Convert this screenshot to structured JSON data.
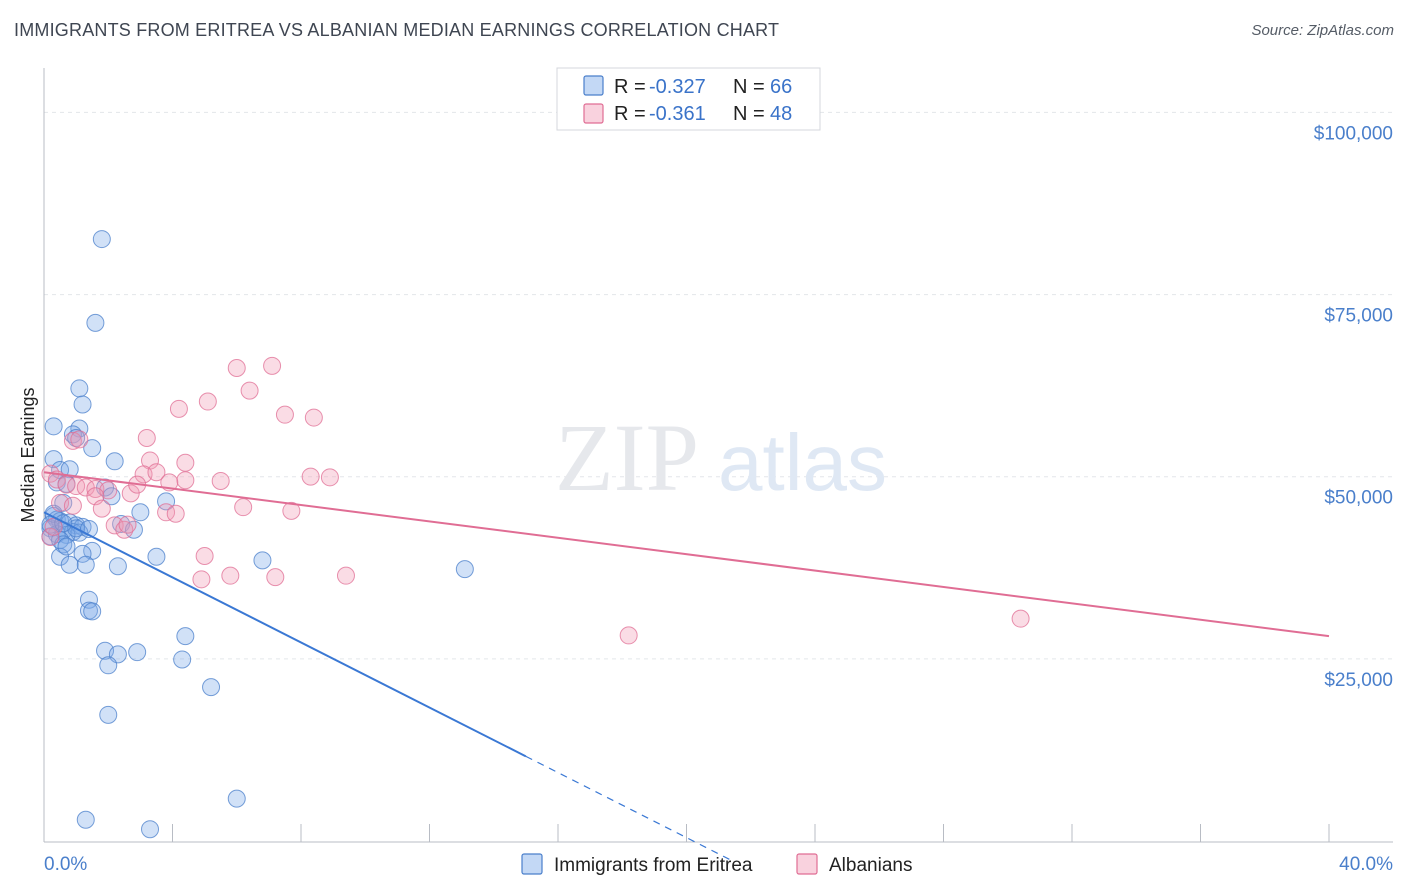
{
  "title": "IMMIGRANTS FROM ERITREA VS ALBANIAN MEDIAN EARNINGS CORRELATION CHART",
  "source": "Source: ZipAtlas.com",
  "watermark": {
    "zip": "ZIP",
    "atlas": "atlas"
  },
  "legend": [
    {
      "r_label": "R =",
      "r_value": "-0.327",
      "n_label": "N =",
      "n_value": "66",
      "color": "#7aa8e8"
    },
    {
      "r_label": "R =",
      "r_value": "-0.361",
      "n_label": "N =",
      "n_value": "48",
      "color": "#f29bb5"
    }
  ],
  "chart_data": {
    "type": "scatter",
    "title": "IMMIGRANTS FROM ERITREA VS ALBANIAN MEDIAN EARNINGS CORRELATION CHART",
    "xlabel": "",
    "ylabel": "Median Earnings",
    "xlim": [
      0,
      40
    ],
    "ylim": [
      0,
      105000
    ],
    "x_tick_labels": [
      {
        "value": 0,
        "label": "0.0%"
      },
      {
        "value": 40,
        "label": "40.0%"
      }
    ],
    "y_ticks": [
      {
        "value": 25000,
        "label": "$25,000"
      },
      {
        "value": 50000,
        "label": "$50,000"
      },
      {
        "value": 75000,
        "label": "$75,000"
      },
      {
        "value": 100000,
        "label": "$100,000"
      }
    ],
    "series": [
      {
        "name": "Immigrants from Eritrea",
        "color": "#7aa8e8",
        "stroke": "#4a7fcb",
        "trend": {
          "x0": 0.0,
          "y0": 48000,
          "x1": 15.0,
          "y1": 14500,
          "dash_to_x": 21.5,
          "dash_to_y": 0
        },
        "points": [
          [
            1.8,
            85500
          ],
          [
            1.6,
            74000
          ],
          [
            1.1,
            65000
          ],
          [
            1.2,
            62800
          ],
          [
            0.3,
            59800
          ],
          [
            1.1,
            59500
          ],
          [
            0.9,
            58700
          ],
          [
            1.0,
            58200
          ],
          [
            1.5,
            56800
          ],
          [
            2.2,
            55000
          ],
          [
            0.3,
            55300
          ],
          [
            0.5,
            53800
          ],
          [
            0.8,
            53900
          ],
          [
            0.4,
            52100
          ],
          [
            0.7,
            51900
          ],
          [
            1.9,
            51400
          ],
          [
            2.1,
            50200
          ],
          [
            3.8,
            49500
          ],
          [
            0.6,
            49300
          ],
          [
            3.0,
            48000
          ],
          [
            0.3,
            47500
          ],
          [
            0.4,
            47000
          ],
          [
            0.5,
            46800
          ],
          [
            0.8,
            46600
          ],
          [
            1.0,
            46200
          ],
          [
            1.2,
            46000
          ],
          [
            0.2,
            45800
          ],
          [
            0.6,
            45500
          ],
          [
            0.9,
            45300
          ],
          [
            1.1,
            45200
          ],
          [
            0.4,
            45000
          ],
          [
            0.7,
            44900
          ],
          [
            0.2,
            44700
          ],
          [
            2.4,
            46400
          ],
          [
            2.8,
            45600
          ],
          [
            0.5,
            44200
          ],
          [
            0.6,
            43600
          ],
          [
            1.5,
            42700
          ],
          [
            1.2,
            42300
          ],
          [
            0.5,
            41900
          ],
          [
            3.5,
            41900
          ],
          [
            6.8,
            41400
          ],
          [
            0.8,
            40800
          ],
          [
            1.3,
            40800
          ],
          [
            2.3,
            40600
          ],
          [
            13.1,
            40200
          ],
          [
            1.4,
            36000
          ],
          [
            1.4,
            34500
          ],
          [
            1.5,
            34400
          ],
          [
            4.4,
            31000
          ],
          [
            1.9,
            29000
          ],
          [
            2.3,
            28500
          ],
          [
            2.9,
            28800
          ],
          [
            4.3,
            27800
          ],
          [
            2.0,
            27000
          ],
          [
            5.2,
            24000
          ],
          [
            2.0,
            20200
          ],
          [
            6.0,
            8700
          ],
          [
            1.3,
            5800
          ],
          [
            3.3,
            4500
          ],
          [
            0.3,
            47800
          ],
          [
            0.7,
            43300
          ],
          [
            1.0,
            45800
          ],
          [
            0.2,
            46300
          ],
          [
            0.6,
            46500
          ],
          [
            1.4,
            45700
          ]
        ]
      },
      {
        "name": "Albanians",
        "color": "#f29bb5",
        "stroke": "#e06d94",
        "trend": {
          "x0": 0.0,
          "y0": 53500,
          "x1": 40.0,
          "y1": 31000
        },
        "points": [
          [
            7.1,
            68100
          ],
          [
            6.0,
            67800
          ],
          [
            6.4,
            64700
          ],
          [
            5.1,
            63200
          ],
          [
            4.2,
            62200
          ],
          [
            7.5,
            61400
          ],
          [
            8.4,
            61000
          ],
          [
            3.2,
            58200
          ],
          [
            0.9,
            57800
          ],
          [
            3.3,
            55100
          ],
          [
            4.4,
            54800
          ],
          [
            3.1,
            53200
          ],
          [
            3.5,
            53500
          ],
          [
            8.3,
            52900
          ],
          [
            8.9,
            52800
          ],
          [
            0.2,
            53300
          ],
          [
            0.4,
            52500
          ],
          [
            0.7,
            51800
          ],
          [
            1.0,
            51600
          ],
          [
            1.3,
            51400
          ],
          [
            1.6,
            51200
          ],
          [
            2.0,
            51000
          ],
          [
            1.6,
            50200
          ],
          [
            2.7,
            50600
          ],
          [
            4.4,
            52400
          ],
          [
            5.5,
            52300
          ],
          [
            3.9,
            52100
          ],
          [
            3.8,
            48000
          ],
          [
            4.1,
            47800
          ],
          [
            6.2,
            48700
          ],
          [
            7.7,
            48200
          ],
          [
            0.5,
            49300
          ],
          [
            0.9,
            48900
          ],
          [
            1.8,
            48500
          ],
          [
            2.2,
            46200
          ],
          [
            2.5,
            45600
          ],
          [
            2.6,
            46300
          ],
          [
            5.0,
            42000
          ],
          [
            4.9,
            38800
          ],
          [
            5.8,
            39300
          ],
          [
            7.2,
            39100
          ],
          [
            9.4,
            39300
          ],
          [
            18.2,
            31100
          ],
          [
            30.4,
            33400
          ],
          [
            0.2,
            44600
          ],
          [
            0.3,
            46000
          ],
          [
            1.1,
            58000
          ],
          [
            2.9,
            51800
          ]
        ]
      }
    ]
  }
}
